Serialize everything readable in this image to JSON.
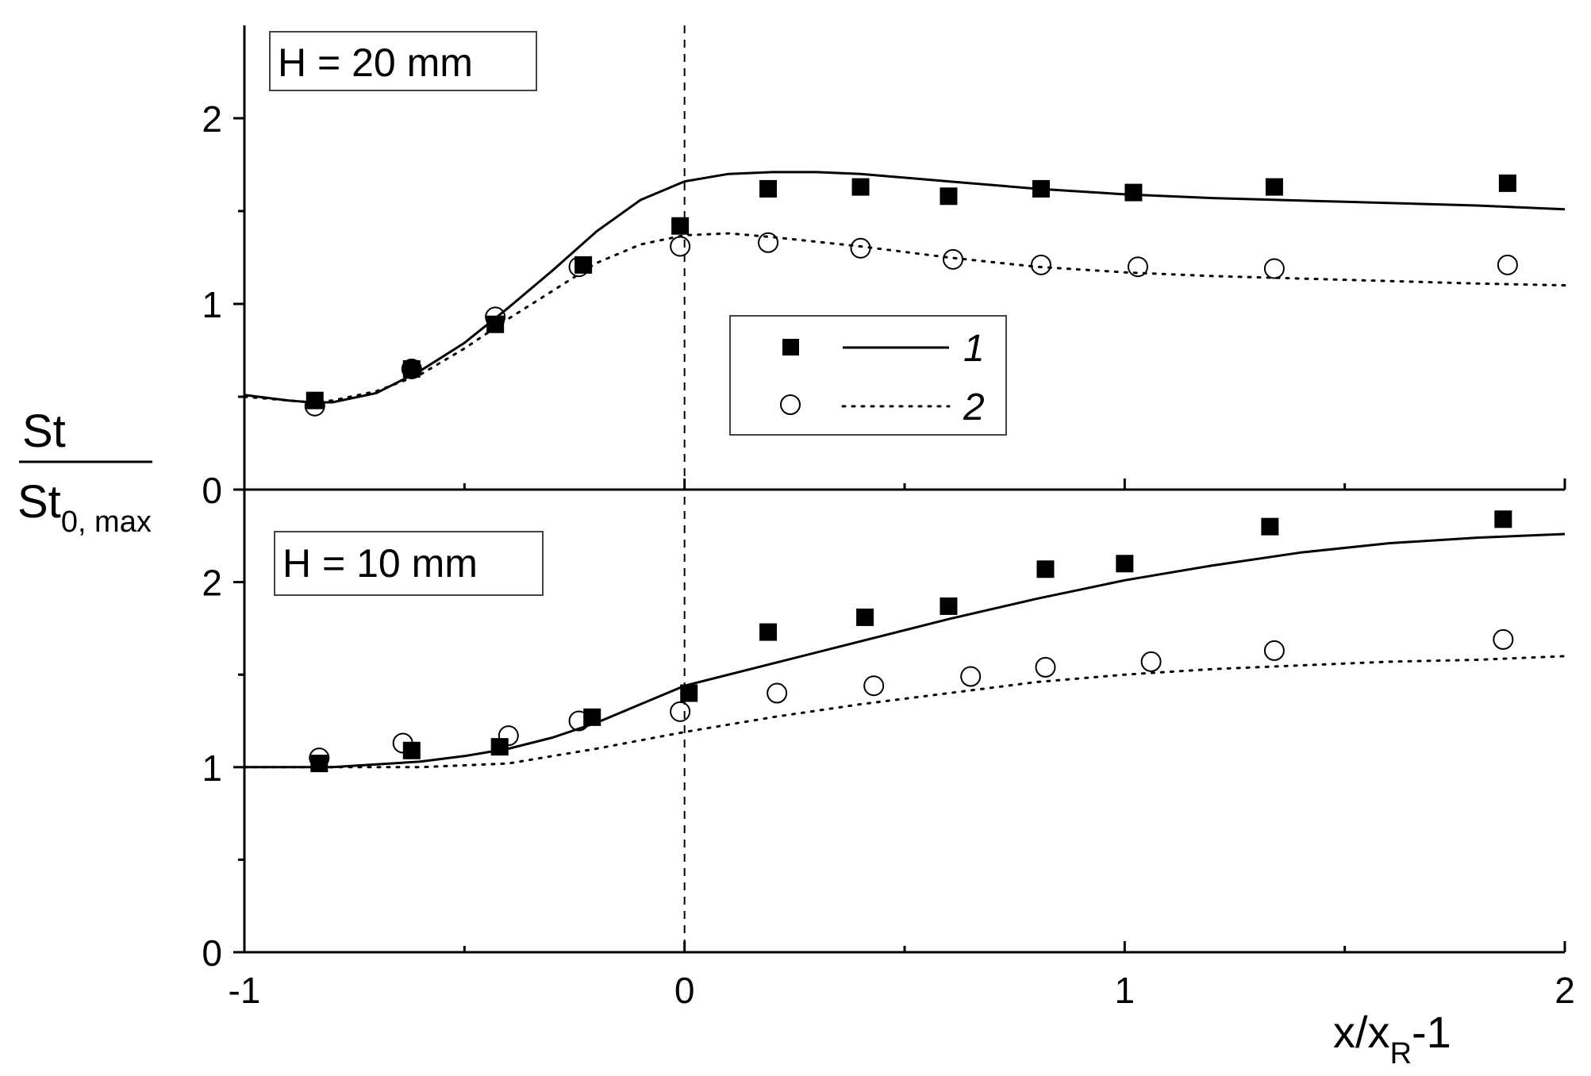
{
  "chart_data": {
    "type": "scatter",
    "shared_x": {
      "ticks": [
        "-1",
        "0",
        "1",
        "2"
      ],
      "tick_values": [
        -1,
        0,
        1,
        2
      ],
      "minor_ticks": [
        -0.5,
        0.5,
        1.5
      ],
      "xlim": [
        -1,
        2
      ],
      "label_main": "x/x",
      "label_sub": "R",
      "label_tail": "-1"
    },
    "y_label": {
      "numerator": "St",
      "denominator_main": "St",
      "denominator_sub": "0, max"
    },
    "reference_line_x": 0,
    "legend": {
      "placement": "inside top panel, center",
      "items": [
        {
          "label": "1",
          "marker": "filled-square",
          "line": "solid"
        },
        {
          "label": "2",
          "marker": "open-circle",
          "line": "dotted"
        }
      ]
    },
    "panels": [
      {
        "id": "top",
        "annotation": "H = 20 mm",
        "ylim": [
          0,
          2.5
        ],
        "yticks": [
          "0",
          "1",
          "2"
        ],
        "ytick_values": [
          0,
          1,
          2
        ],
        "minor_yticks": [
          0.5,
          1.5
        ],
        "series": [
          {
            "name": "1",
            "kind": "points",
            "marker": "filled-square",
            "x": [
              -0.84,
              -0.62,
              -0.43,
              -0.23,
              -0.01,
              0.19,
              0.4,
              0.6,
              0.81,
              1.02,
              1.34,
              1.87
            ],
            "y": [
              0.48,
              0.65,
              0.89,
              1.21,
              1.42,
              1.62,
              1.63,
              1.58,
              1.62,
              1.6,
              1.63,
              1.65
            ]
          },
          {
            "name": "2",
            "kind": "points",
            "marker": "open-circle",
            "x": [
              -0.84,
              -0.62,
              -0.43,
              -0.24,
              -0.01,
              0.19,
              0.4,
              0.61,
              0.81,
              1.03,
              1.34,
              1.87
            ],
            "y": [
              0.45,
              0.65,
              0.93,
              1.2,
              1.31,
              1.33,
              1.3,
              1.24,
              1.21,
              1.2,
              1.19,
              1.21
            ]
          },
          {
            "name": "1",
            "kind": "line",
            "style": "solid",
            "x": [
              -1,
              -0.9,
              -0.85,
              -0.8,
              -0.7,
              -0.6,
              -0.5,
              -0.4,
              -0.3,
              -0.2,
              -0.1,
              0,
              0.1,
              0.2,
              0.3,
              0.4,
              0.6,
              0.8,
              1.0,
              1.2,
              1.5,
              1.8,
              2.0
            ],
            "y": [
              0.51,
              0.48,
              0.47,
              0.47,
              0.52,
              0.64,
              0.79,
              0.98,
              1.18,
              1.39,
              1.56,
              1.66,
              1.7,
              1.71,
              1.71,
              1.7,
              1.66,
              1.62,
              1.59,
              1.57,
              1.55,
              1.53,
              1.51
            ]
          },
          {
            "name": "2",
            "kind": "line",
            "style": "dotted",
            "x": [
              -1,
              -0.9,
              -0.85,
              -0.8,
              -0.7,
              -0.6,
              -0.5,
              -0.4,
              -0.3,
              -0.2,
              -0.1,
              0,
              0.1,
              0.2,
              0.4,
              0.6,
              0.8,
              1.0,
              1.2,
              1.5,
              1.8,
              2.0
            ],
            "y": [
              0.5,
              0.48,
              0.47,
              0.48,
              0.53,
              0.62,
              0.76,
              0.92,
              1.07,
              1.22,
              1.32,
              1.37,
              1.38,
              1.36,
              1.31,
              1.25,
              1.2,
              1.17,
              1.15,
              1.13,
              1.11,
              1.1
            ]
          }
        ]
      },
      {
        "id": "bottom",
        "annotation": "H = 10 mm",
        "ylim": [
          0,
          2.5
        ],
        "yticks": [
          "0",
          "1",
          "2"
        ],
        "ytick_values": [
          0,
          1,
          2
        ],
        "minor_yticks": [
          0.5,
          1.5
        ],
        "series": [
          {
            "name": "1",
            "kind": "points",
            "marker": "filled-square",
            "x": [
              -0.83,
              -0.62,
              -0.42,
              -0.21,
              0.01,
              0.19,
              0.41,
              0.6,
              0.82,
              1.0,
              1.33,
              1.86
            ],
            "y": [
              1.02,
              1.09,
              1.11,
              1.27,
              1.4,
              1.73,
              1.81,
              1.87,
              2.07,
              2.1,
              2.3,
              2.34
            ]
          },
          {
            "name": "2",
            "kind": "points",
            "marker": "open-circle",
            "x": [
              -0.83,
              -0.64,
              -0.4,
              -0.24,
              -0.01,
              0.21,
              0.43,
              0.65,
              0.82,
              1.06,
              1.34,
              1.86
            ],
            "y": [
              1.05,
              1.13,
              1.17,
              1.25,
              1.3,
              1.4,
              1.44,
              1.49,
              1.54,
              1.57,
              1.63,
              1.69
            ]
          },
          {
            "name": "1",
            "kind": "line",
            "style": "solid",
            "x": [
              -1,
              -0.8,
              -0.6,
              -0.5,
              -0.4,
              -0.3,
              -0.2,
              -0.1,
              0,
              0.2,
              0.4,
              0.6,
              0.8,
              1.0,
              1.2,
              1.4,
              1.6,
              1.8,
              2.0
            ],
            "y": [
              1.0,
              1.0,
              1.03,
              1.06,
              1.1,
              1.16,
              1.24,
              1.34,
              1.44,
              1.56,
              1.68,
              1.8,
              1.91,
              2.01,
              2.09,
              2.16,
              2.21,
              2.24,
              2.26
            ]
          },
          {
            "name": "2",
            "kind": "line",
            "style": "dotted",
            "x": [
              -1,
              -0.8,
              -0.6,
              -0.4,
              -0.2,
              0,
              0.2,
              0.4,
              0.6,
              0.8,
              1.0,
              1.2,
              1.4,
              1.6,
              1.8,
              2.0
            ],
            "y": [
              1.0,
              1.0,
              1.0,
              1.02,
              1.1,
              1.19,
              1.27,
              1.34,
              1.4,
              1.46,
              1.5,
              1.53,
              1.55,
              1.57,
              1.58,
              1.6
            ]
          }
        ]
      }
    ]
  }
}
